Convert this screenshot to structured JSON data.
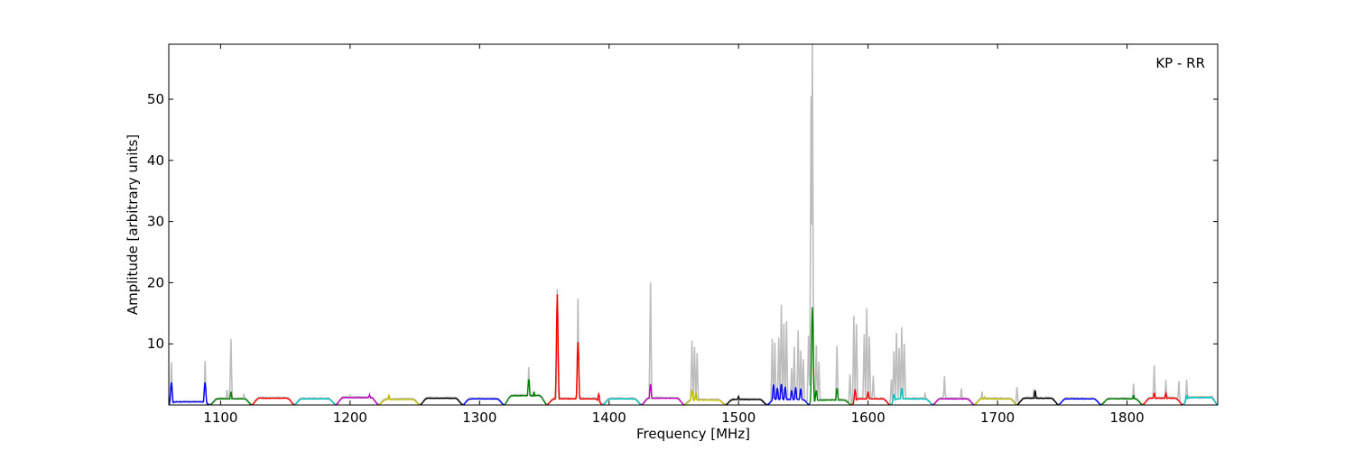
{
  "chart_data": {
    "type": "line",
    "title": "",
    "annotation": "KP - RR",
    "xlabel": "Frequency [MHz]",
    "ylabel": "Amplitude [arbitrary units]",
    "xlim": [
      1060,
      1870
    ],
    "ylim": [
      0,
      59
    ],
    "xticks": [
      1100,
      1200,
      1300,
      1400,
      1500,
      1600,
      1700,
      1800
    ],
    "yticks": [
      10,
      20,
      30,
      40,
      50
    ],
    "grid": false,
    "background_series": {
      "color": "#bdbdbd",
      "spikes": [
        {
          "x": 1062,
          "y": 7
        },
        {
          "x": 1088,
          "y": 7.2
        },
        {
          "x": 1108,
          "y": 10.8
        },
        {
          "x": 1105,
          "y": 2.5
        },
        {
          "x": 1118,
          "y": 1.8
        },
        {
          "x": 1200,
          "y": 1.6
        },
        {
          "x": 1338,
          "y": 6.2
        },
        {
          "x": 1360,
          "y": 19
        },
        {
          "x": 1376,
          "y": 17.4
        },
        {
          "x": 1432,
          "y": 20
        },
        {
          "x": 1464,
          "y": 10.5
        },
        {
          "x": 1466,
          "y": 9.5
        },
        {
          "x": 1468,
          "y": 8.5
        },
        {
          "x": 1526,
          "y": 10.8
        },
        {
          "x": 1528,
          "y": 10.2
        },
        {
          "x": 1531,
          "y": 11
        },
        {
          "x": 1533,
          "y": 16.4
        },
        {
          "x": 1535,
          "y": 13.3
        },
        {
          "x": 1537,
          "y": 13.7
        },
        {
          "x": 1541,
          "y": 6
        },
        {
          "x": 1543,
          "y": 9.5
        },
        {
          "x": 1546,
          "y": 12.2
        },
        {
          "x": 1548,
          "y": 8.9
        },
        {
          "x": 1550,
          "y": 7.5
        },
        {
          "x": 1554,
          "y": 11.3
        },
        {
          "x": 1556,
          "y": 50.5
        },
        {
          "x": 1557,
          "y": 59
        },
        {
          "x": 1560,
          "y": 9.8
        },
        {
          "x": 1562,
          "y": 7.1
        },
        {
          "x": 1576,
          "y": 9.6
        },
        {
          "x": 1586,
          "y": 5
        },
        {
          "x": 1589,
          "y": 14.6
        },
        {
          "x": 1591,
          "y": 13.2
        },
        {
          "x": 1597,
          "y": 11.6
        },
        {
          "x": 1599,
          "y": 15.8
        },
        {
          "x": 1601,
          "y": 11.2
        },
        {
          "x": 1604,
          "y": 4.8
        },
        {
          "x": 1618,
          "y": 4.2
        },
        {
          "x": 1620,
          "y": 8.8
        },
        {
          "x": 1622,
          "y": 11.8
        },
        {
          "x": 1624,
          "y": 9.3
        },
        {
          "x": 1626,
          "y": 12.7
        },
        {
          "x": 1628,
          "y": 10
        },
        {
          "x": 1644,
          "y": 2
        },
        {
          "x": 1659,
          "y": 4.7
        },
        {
          "x": 1672,
          "y": 2.7
        },
        {
          "x": 1688,
          "y": 2.2
        },
        {
          "x": 1715,
          "y": 2.9
        },
        {
          "x": 1728,
          "y": 2.6
        },
        {
          "x": 1805,
          "y": 3.5
        },
        {
          "x": 1821,
          "y": 6.5
        },
        {
          "x": 1830,
          "y": 4.1
        },
        {
          "x": 1840,
          "y": 3.9
        },
        {
          "x": 1846,
          "y": 4.1
        },
        {
          "x": 1866,
          "y": 1.4
        }
      ]
    },
    "series": [
      {
        "color": "#0000ff",
        "x_range": [
          1060,
          1092
        ],
        "level": 0.5,
        "peaks": [
          {
            "x": 1062,
            "y": 3.7
          },
          {
            "x": 1088,
            "y": 3.7
          }
        ]
      },
      {
        "color": "#008000",
        "x_range": [
          1092,
          1124
        ],
        "level": 1.0,
        "peaks": [
          {
            "x": 1108,
            "y": 2.2
          }
        ]
      },
      {
        "color": "#ff0000",
        "x_range": [
          1124,
          1157
        ],
        "level": 1.1,
        "peaks": []
      },
      {
        "color": "#00bfbf",
        "x_range": [
          1157,
          1189
        ],
        "level": 1.0,
        "peaks": []
      },
      {
        "color": "#bf00bf",
        "x_range": [
          1189,
          1222
        ],
        "level": 1.2,
        "peaks": [
          {
            "x": 1215,
            "y": 1.7
          }
        ]
      },
      {
        "color": "#bfbf00",
        "x_range": [
          1222,
          1254
        ],
        "level": 0.9,
        "peaks": [
          {
            "x": 1230,
            "y": 1.6
          }
        ]
      },
      {
        "color": "#000000",
        "x_range": [
          1254,
          1287
        ],
        "level": 1.1,
        "peaks": []
      },
      {
        "color": "#0000ff",
        "x_range": [
          1287,
          1319
        ],
        "level": 1.0,
        "peaks": []
      },
      {
        "color": "#008000",
        "x_range": [
          1319,
          1352
        ],
        "level": 1.5,
        "peaks": [
          {
            "x": 1327,
            "y": 1.0
          },
          {
            "x": 1338,
            "y": 4.3
          },
          {
            "x": 1342,
            "y": 2.2
          }
        ]
      },
      {
        "color": "#ff0000",
        "x_range": [
          1352,
          1395
        ],
        "level": 1.0,
        "peaks": [
          {
            "x": 1360,
            "y": 18.1
          },
          {
            "x": 1376,
            "y": 10.3
          },
          {
            "x": 1392,
            "y": 1.8
          }
        ]
      },
      {
        "color": "#00bfbf",
        "x_range": [
          1395,
          1425
        ],
        "level": 1.0,
        "peaks": []
      },
      {
        "color": "#bf00bf",
        "x_range": [
          1425,
          1458
        ],
        "level": 1.1,
        "peaks": [
          {
            "x": 1432,
            "y": 3.5
          }
        ]
      },
      {
        "color": "#bfbf00",
        "x_range": [
          1458,
          1490
        ],
        "level": 0.8,
        "peaks": [
          {
            "x": 1464,
            "y": 2.5
          },
          {
            "x": 1467,
            "y": 2.1
          }
        ]
      },
      {
        "color": "#000000",
        "x_range": [
          1490,
          1522
        ],
        "level": 0.9,
        "peaks": [
          {
            "x": 1500,
            "y": 1.4
          }
        ]
      },
      {
        "color": "#0000ff",
        "x_range": [
          1522,
          1555
        ],
        "level": 0.9,
        "peaks": [
          {
            "x": 1527,
            "y": 3.4
          },
          {
            "x": 1530,
            "y": 2.8
          },
          {
            "x": 1533,
            "y": 3.5
          },
          {
            "x": 1536,
            "y": 3.0
          },
          {
            "x": 1541,
            "y": 2.4
          },
          {
            "x": 1544,
            "y": 2.9
          },
          {
            "x": 1548,
            "y": 2.7
          }
        ]
      },
      {
        "color": "#008000",
        "x_range": [
          1555,
          1587
        ],
        "level": 0.8,
        "peaks": [
          {
            "x": 1557,
            "y": 16
          },
          {
            "x": 1560,
            "y": 2.4
          },
          {
            "x": 1576,
            "y": 2.8
          }
        ]
      },
      {
        "color": "#ff0000",
        "x_range": [
          1587,
          1617
        ],
        "level": 1.0,
        "peaks": [
          {
            "x": 1590,
            "y": 2.6
          },
          {
            "x": 1600,
            "y": 2.2
          }
        ]
      },
      {
        "color": "#00bfbf",
        "x_range": [
          1617,
          1650
        ],
        "level": 1.0,
        "peaks": [
          {
            "x": 1620,
            "y": 1.8
          },
          {
            "x": 1626,
            "y": 2.8
          }
        ]
      },
      {
        "color": "#bf00bf",
        "x_range": [
          1650,
          1682
        ],
        "level": 1.0,
        "peaks": []
      },
      {
        "color": "#bfbf00",
        "x_range": [
          1682,
          1715
        ],
        "level": 1.0,
        "peaks": [
          {
            "x": 1690,
            "y": 1.3
          }
        ]
      },
      {
        "color": "#000000",
        "x_range": [
          1715,
          1747
        ],
        "level": 1.1,
        "peaks": [
          {
            "x": 1729,
            "y": 2.4
          }
        ]
      },
      {
        "color": "#0000ff",
        "x_range": [
          1747,
          1780
        ],
        "level": 1.0,
        "peaks": []
      },
      {
        "color": "#008000",
        "x_range": [
          1780,
          1812
        ],
        "level": 1.0,
        "peaks": [
          {
            "x": 1805,
            "y": 1.6
          }
        ]
      },
      {
        "color": "#ff0000",
        "x_range": [
          1812,
          1843
        ],
        "level": 1.1,
        "peaks": [
          {
            "x": 1821,
            "y": 2.0
          },
          {
            "x": 1830,
            "y": 1.9
          }
        ]
      },
      {
        "color": "#00bfbf",
        "x_range": [
          1843,
          1870
        ],
        "level": 1.2,
        "peaks": [
          {
            "x": 1846,
            "y": 1.6
          }
        ]
      }
    ]
  }
}
